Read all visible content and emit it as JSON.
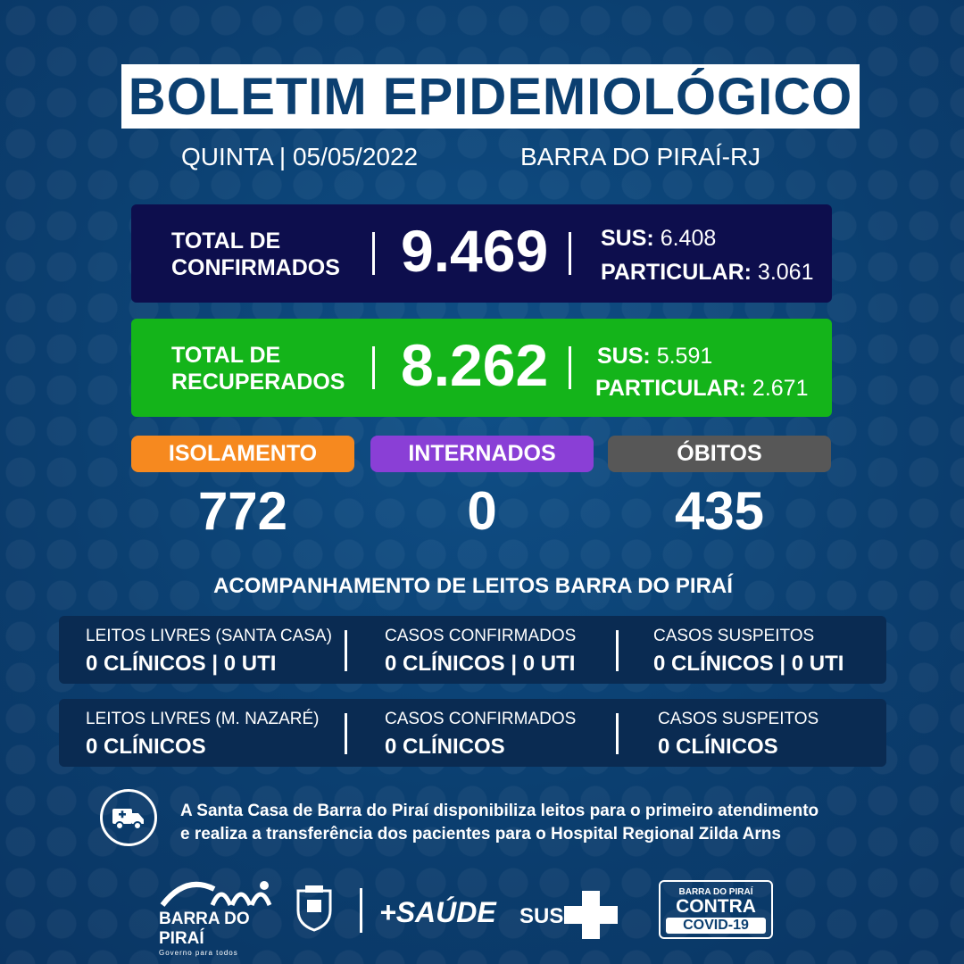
{
  "header": {
    "title": "BOLETIM EPIDEMIOLÓGICO",
    "date": "QUINTA | 05/05/2022",
    "city": "BARRA DO PIRAÍ-RJ"
  },
  "confirmed": {
    "label_line1": "TOTAL DE",
    "label_line2": "CONFIRMADOS",
    "total": "9.469",
    "sus_label": "SUS:",
    "sus_value": "6.408",
    "private_label": "PARTICULAR:",
    "private_value": "3.061"
  },
  "recovered": {
    "label_line1": "TOTAL DE",
    "label_line2": "RECUPERADOS",
    "total": "8.262",
    "sus_label": "SUS:",
    "sus_value": "5.591",
    "private_label": "PARTICULAR:",
    "private_value": "2.671"
  },
  "stats": [
    {
      "label": "ISOLAMENTO",
      "value": "772",
      "color": "#f6891f"
    },
    {
      "label": "INTERNADOS",
      "value": "0",
      "color": "#8a3fd6"
    },
    {
      "label": "ÓBITOS",
      "value": "435",
      "color": "#575757"
    }
  ],
  "beds_title": "ACOMPANHAMENTO DE LEITOS BARRA DO PIRAÍ",
  "beds": [
    {
      "cells": [
        {
          "header": "LEITOS LIVRES (SANTA CASA)",
          "value": "0 CLÍNICOS | 0 UTI"
        },
        {
          "header": "CASOS CONFIRMADOS",
          "value": "0 CLÍNICOS | 0 UTI"
        },
        {
          "header": "CASOS SUSPEITOS",
          "value": "0 CLÍNICOS | 0 UTI"
        }
      ]
    },
    {
      "cells": [
        {
          "header": "LEITOS LIVRES (M. NAZARÉ)",
          "value": "0 CLÍNICOS"
        },
        {
          "header": "CASOS CONFIRMADOS",
          "value": "0 CLÍNICOS"
        },
        {
          "header": "CASOS SUSPEITOS",
          "value": "0 CLÍNICOS"
        }
      ]
    }
  ],
  "info": {
    "icon": "ambulance-icon",
    "line1": "A Santa Casa de Barra do Piraí disponibiliza leitos para o primeiro atendimento",
    "line2": "e realiza a transferência dos pacientes para o Hospital Regional Zilda Arns"
  },
  "footer": {
    "city_logo": "BARRA DO PIRAÍ",
    "city_slogan": "Governo para todos",
    "saude_logo": "+SAÚDE",
    "sus_logo": "SUS",
    "campaign_top": "BARRA DO PIRAÍ",
    "campaign_middle": "CONTRA",
    "campaign_bottom": "COVID-19"
  },
  "colors": {
    "background": "#0b3f70",
    "confirmed_card": "#0d0e4d",
    "recovered_card": "#14b41a",
    "beds_card": "#0a2b52"
  }
}
